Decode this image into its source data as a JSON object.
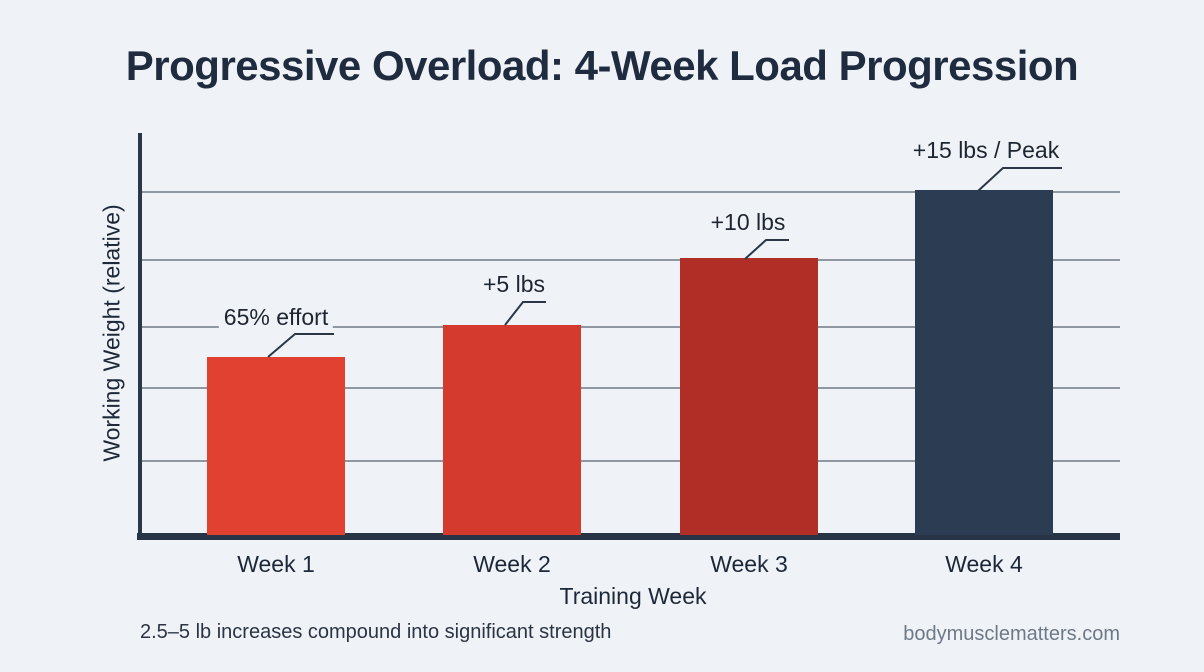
{
  "page": {
    "title": "Progressive Overload: 4-Week Load Progression",
    "footer_note": "2.5–5 lb increases compound into significant strength",
    "footer_site": "bodymusclematters.com"
  },
  "colors": {
    "background": "#eff3f8",
    "title_text": "#1f2b3e",
    "axis_line": "#2a3747",
    "gridline": "#8f97a1",
    "label_text": "#1c2737",
    "footer_note_text": "#2b3442",
    "footer_site_text": "#6e7987",
    "leader_line": "#2b3747"
  },
  "chart_data": {
    "type": "bar",
    "title": "Progressive Overload: 4-Week Load Progression",
    "xlabel": "Training Week",
    "ylabel": "Working Weight (relative)",
    "categories": [
      "Week 1",
      "Week 2",
      "Week 3",
      "Week 4"
    ],
    "values": [
      178,
      210,
      277,
      345
    ],
    "values_relative_to_week1": [
      1.0,
      1.18,
      1.56,
      1.94
    ],
    "ylim": [
      0,
      402
    ],
    "y_tick_labels": [],
    "gridline_values": [
      75,
      141,
      209,
      276,
      344
    ],
    "grid": "horizontal only",
    "legend": "none",
    "bar_colors": [
      "#e04130",
      "#d53a2e",
      "#b02e25",
      "#2b3c53"
    ],
    "annotations": [
      "65% effort",
      "+5 lbs",
      "+10 lbs",
      "+15 lbs / Peak"
    ]
  }
}
